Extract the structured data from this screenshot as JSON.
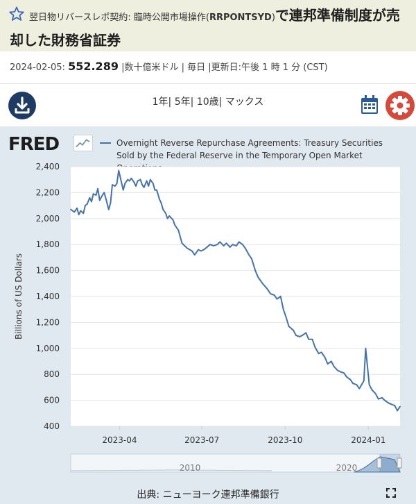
{
  "header": {
    "title_prefix": "翌日物リバースレポ契約: 臨時公開市場操作(",
    "series_id": "RRPONTSYD",
    "title_suffix": ")",
    "title_main": "で連邦準備制度が売却した財務省証券"
  },
  "meta": {
    "date": "2024-02-05:",
    "value": "552.289",
    "unit": "|数十億米ドル",
    "frequency": "| 毎日",
    "updated": "|更新日:午後 1 時 1 分 (CST)"
  },
  "toolbar": {
    "range_1y": "1年|",
    "range_5y": "5年|",
    "range_10y": "10歳|",
    "range_max": "マックス",
    "download_icon": "download-icon",
    "calendar_icon": "calendar-icon",
    "settings_icon": "gear-icon"
  },
  "brand": {
    "logo": "FRED"
  },
  "footer": {
    "source": "出典: ニューヨーク連邦準備銀行"
  },
  "colors": {
    "line": "#4572a7",
    "frame_bg": "#e1e9f0",
    "header_bg": "#efefdf",
    "navy": "#1f3b63",
    "gear": "#d24a3c"
  },
  "chart_data": {
    "type": "line",
    "series": [
      {
        "name": "Overnight Reverse Repurchase Agreements: Treasury Securities Sold by the Federal Reserve in the Temporary Open Market Operations",
        "x": [
          "2023-02-06",
          "2023-02-08",
          "2023-02-10",
          "2023-02-13",
          "2023-02-15",
          "2023-02-17",
          "2023-02-20",
          "2023-02-22",
          "2023-02-24",
          "2023-02-27",
          "2023-03-01",
          "2023-03-03",
          "2023-03-06",
          "2023-03-08",
          "2023-03-10",
          "2023-03-13",
          "2023-03-15",
          "2023-03-17",
          "2023-03-20",
          "2023-03-22",
          "2023-03-24",
          "2023-03-27",
          "2023-03-29",
          "2023-03-31",
          "2023-04-03",
          "2023-04-05",
          "2023-04-07",
          "2023-04-10",
          "2023-04-12",
          "2023-04-14",
          "2023-04-17",
          "2023-04-19",
          "2023-04-21",
          "2023-04-24",
          "2023-04-26",
          "2023-04-28",
          "2023-05-01",
          "2023-05-03",
          "2023-05-05",
          "2023-05-08",
          "2023-05-10",
          "2023-05-12",
          "2023-05-15",
          "2023-05-17",
          "2023-05-19",
          "2023-05-22",
          "2023-05-24",
          "2023-05-26",
          "2023-05-30",
          "2023-06-01",
          "2023-06-05",
          "2023-06-07",
          "2023-06-09",
          "2023-06-12",
          "2023-06-15",
          "2023-06-20",
          "2023-06-23",
          "2023-06-27",
          "2023-06-30",
          "2023-07-03",
          "2023-07-05",
          "2023-07-10",
          "2023-07-14",
          "2023-07-18",
          "2023-07-21",
          "2023-07-25",
          "2023-07-28",
          "2023-08-01",
          "2023-08-04",
          "2023-08-08",
          "2023-08-11",
          "2023-08-15",
          "2023-08-18",
          "2023-08-22",
          "2023-08-25",
          "2023-08-29",
          "2023-09-01",
          "2023-09-06",
          "2023-09-11",
          "2023-09-15",
          "2023-09-19",
          "2023-09-22",
          "2023-09-26",
          "2023-09-29",
          "2023-10-02",
          "2023-10-05",
          "2023-10-10",
          "2023-10-13",
          "2023-10-17",
          "2023-10-20",
          "2023-10-24",
          "2023-10-27",
          "2023-10-31",
          "2023-11-03",
          "2023-11-07",
          "2023-11-10",
          "2023-11-14",
          "2023-11-17",
          "2023-11-21",
          "2023-11-24",
          "2023-11-28",
          "2023-12-01",
          "2023-12-05",
          "2023-12-08",
          "2023-12-12",
          "2023-12-15",
          "2023-12-19",
          "2023-12-22",
          "2023-12-27",
          "2023-12-29",
          "2024-01-02",
          "2024-01-05",
          "2024-01-09",
          "2024-01-12",
          "2024-01-16",
          "2024-01-19",
          "2024-01-23",
          "2024-01-26",
          "2024-01-30",
          "2024-02-02",
          "2024-02-05"
        ],
        "values": [
          2070,
          2060,
          2050,
          2080,
          2030,
          2060,
          2040,
          2100,
          2110,
          2160,
          2130,
          2190,
          2180,
          2230,
          2140,
          2180,
          2200,
          2150,
          2070,
          2120,
          2260,
          2250,
          2270,
          2370,
          2280,
          2220,
          2270,
          2300,
          2290,
          2310,
          2280,
          2250,
          2290,
          2300,
          2260,
          2240,
          2290,
          2250,
          2300,
          2270,
          2220,
          2220,
          2150,
          2120,
          2070,
          2040,
          2000,
          2020,
          1990,
          1950,
          1910,
          1860,
          1810,
          1790,
          1770,
          1750,
          1720,
          1760,
          1750,
          1760,
          1770,
          1800,
          1790,
          1800,
          1820,
          1790,
          1810,
          1780,
          1800,
          1790,
          1820,
          1800,
          1770,
          1720,
          1690,
          1600,
          1550,
          1500,
          1460,
          1420,
          1410,
          1380,
          1400,
          1300,
          1240,
          1170,
          1140,
          1100,
          1090,
          1100,
          1120,
          1070,
          1070,
          1010,
          960,
          970,
          930,
          880,
          900,
          860,
          830,
          820,
          810,
          780,
          760,
          730,
          720,
          690,
          750,
          1000,
          720,
          680,
          650,
          610,
          620,
          600,
          580,
          570,
          560,
          520,
          552
        ]
      }
    ],
    "x_ticks": [
      "2023-04",
      "2023-07",
      "2023-10",
      "2024-01"
    ],
    "y_ticks": [
      400,
      600,
      800,
      1000,
      1200,
      1400,
      1600,
      1800,
      2000,
      2200,
      2400
    ],
    "ylabel": "Billions of US Dollars",
    "xlabel": "",
    "ylim": [
      400,
      2400
    ],
    "xlim": [
      "2023-02-06",
      "2024-02-05"
    ],
    "grid": "horizontal",
    "legend": "top",
    "navigator_ticks": [
      "2010",
      "2020"
    ]
  }
}
